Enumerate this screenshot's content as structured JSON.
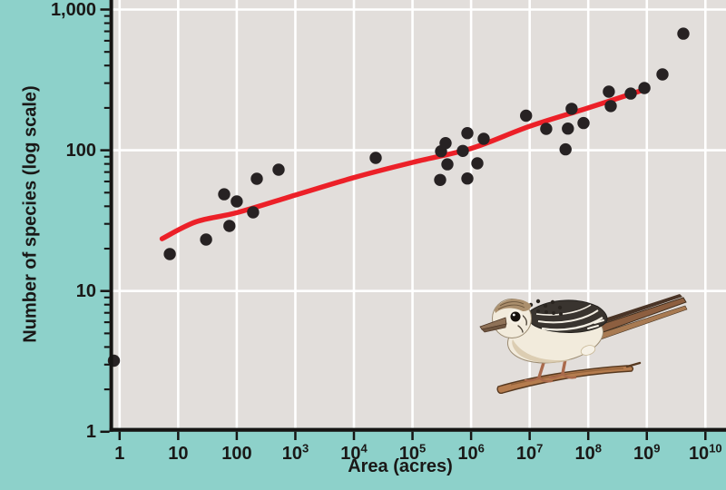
{
  "figure": {
    "background_color": "#8dd1ca",
    "plot_background_color": "#e2dedb",
    "grid_color": "#ffffff",
    "axis_color": "#161413",
    "text_color": "#1a1817",
    "point_color": "#272223",
    "trend_color": "#ec2028"
  },
  "chart_data": {
    "type": "scatter",
    "x_scale": "log",
    "y_scale": "log",
    "grid": true,
    "x_axis": {
      "title": "Area (acres)",
      "lim": [
        0.75,
        22000000000
      ],
      "ticks": [
        {
          "label": "1",
          "value": 1
        },
        {
          "label": "10",
          "value": 10
        },
        {
          "label": "100",
          "value": 100
        },
        {
          "label": "10^3",
          "value": 1000
        },
        {
          "label": "10^4",
          "value": 10000
        },
        {
          "label": "10^5",
          "value": 100000
        },
        {
          "label": "10^6",
          "value": 1000000
        },
        {
          "label": "10^7",
          "value": 10000000
        },
        {
          "label": "10^8",
          "value": 100000000
        },
        {
          "label": "10^9",
          "value": 1000000000
        },
        {
          "label": "10^10",
          "value": 10000000000
        }
      ],
      "minor_ticks": false
    },
    "y_axis": {
      "title": "Number of species (log scale)",
      "lim": [
        1,
        1170
      ],
      "ticks": [
        {
          "label": "1",
          "value": 1
        },
        {
          "label": "10",
          "value": 10
        },
        {
          "label": "100",
          "value": 100
        },
        {
          "label": "1,000",
          "value": 1000
        }
      ],
      "minor_ticks": true
    },
    "points": [
      [
        0.8,
        3.2
      ],
      [
        7.2,
        18.3
      ],
      [
        30,
        23.2
      ],
      [
        61,
        48.7
      ],
      [
        75,
        29
      ],
      [
        100,
        43.3
      ],
      [
        190,
        36.2
      ],
      [
        220,
        62.7
      ],
      [
        518,
        72.8
      ],
      [
        23500,
        88.3
      ],
      [
        296000,
        61.5
      ],
      [
        307000,
        98.4
      ],
      [
        367000,
        112.5
      ],
      [
        394000,
        79.5
      ],
      [
        723000,
        98.9
      ],
      [
        863000,
        132.3
      ],
      [
        863000,
        63
      ],
      [
        1280000,
        80.7
      ],
      [
        1640000,
        120.5
      ],
      [
        8700000,
        176
      ],
      [
        19200000,
        141.9
      ],
      [
        41000000,
        101.5
      ],
      [
        45000000,
        142.5
      ],
      [
        52000000,
        197
      ],
      [
        83000000,
        156
      ],
      [
        225000000,
        261
      ],
      [
        242000000,
        206
      ],
      [
        530000000,
        253
      ],
      [
        910000000,
        277
      ],
      [
        1850000000,
        346
      ],
      [
        4200000000,
        674
      ]
    ],
    "trend_line": [
      [
        5.3,
        23.5
      ],
      [
        20,
        31
      ],
      [
        100,
        36
      ],
      [
        1000,
        48
      ],
      [
        10000,
        64
      ],
      [
        100000,
        82
      ],
      [
        1000000,
        103
      ],
      [
        10000000,
        148
      ],
      [
        100000000,
        200
      ],
      [
        860000000,
        268
      ]
    ]
  }
}
